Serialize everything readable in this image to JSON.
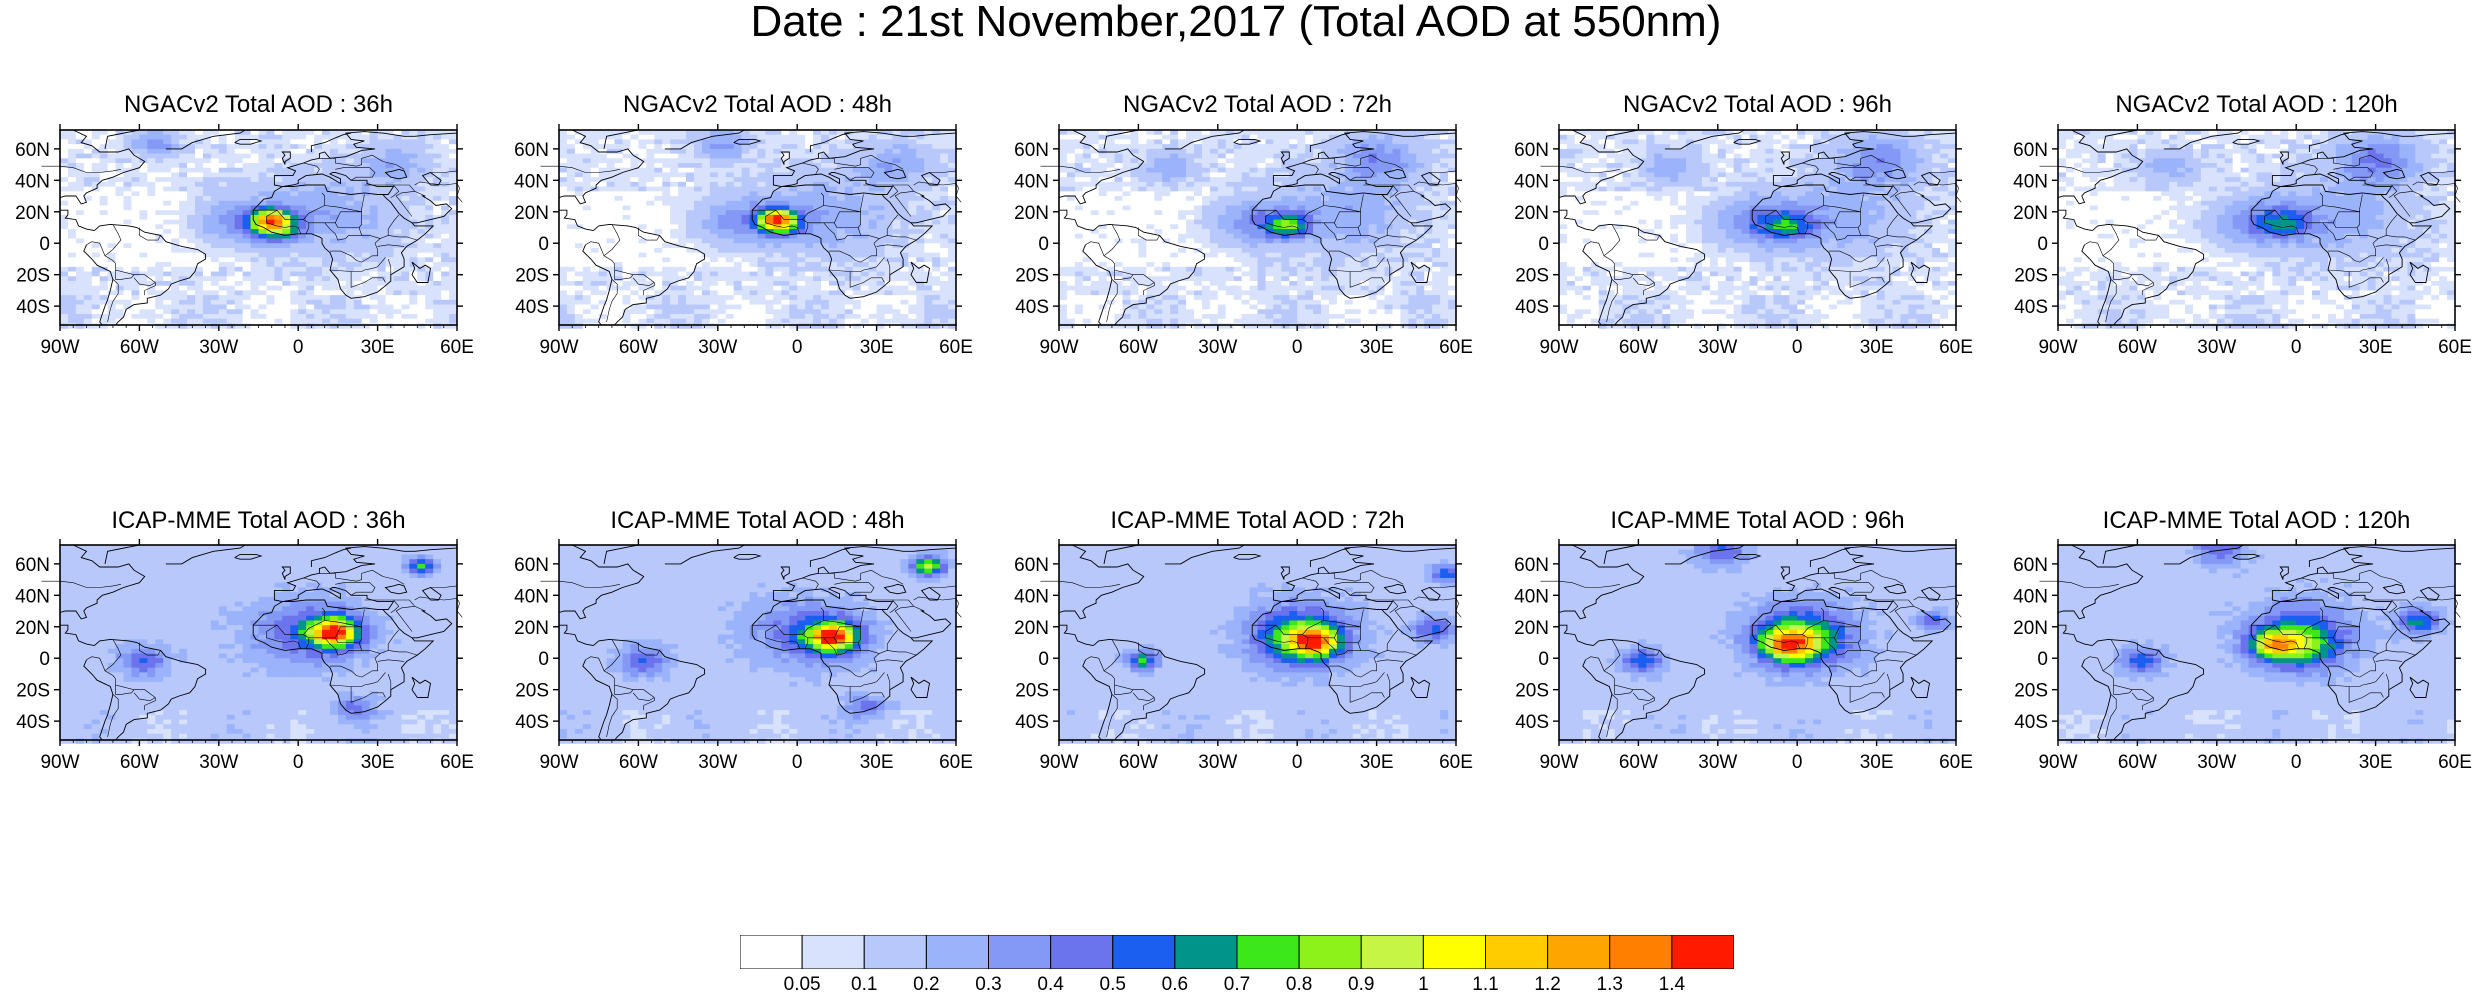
{
  "title": "Date : 21st November,2017 (Total AOD at 550nm)",
  "panels": [
    {
      "title": "NGACv2 Total AOD : 36h",
      "model": "NGACv2",
      "lead": "36h",
      "row": 0,
      "col": 0,
      "blobs": [
        [
          -10,
          13,
          9,
          0.8
        ],
        [
          -12,
          17,
          6,
          0.5
        ],
        [
          -25,
          16,
          15,
          0.3
        ],
        [
          10,
          20,
          25,
          0.2
        ],
        [
          -55,
          65,
          8,
          0.3
        ],
        [
          35,
          52,
          12,
          0.2
        ]
      ]
    },
    {
      "title": "NGACv2 Total AOD : 48h",
      "model": "NGACv2",
      "lead": "48h",
      "row": 0,
      "col": 1,
      "blobs": [
        [
          -8,
          15,
          8,
          0.8
        ],
        [
          -10,
          17,
          6,
          0.5
        ],
        [
          -25,
          16,
          15,
          0.3
        ],
        [
          10,
          20,
          25,
          0.2
        ],
        [
          -30,
          65,
          10,
          0.25
        ],
        [
          35,
          52,
          14,
          0.2
        ]
      ]
    },
    {
      "title": "NGACv2 Total AOD : 72h",
      "model": "NGACv2",
      "lead": "72h",
      "row": 0,
      "col": 2,
      "blobs": [
        [
          -5,
          13,
          8,
          0.6
        ],
        [
          -20,
          15,
          14,
          0.3
        ],
        [
          15,
          20,
          25,
          0.2
        ],
        [
          30,
          55,
          15,
          0.3
        ],
        [
          -50,
          50,
          10,
          0.2
        ]
      ]
    },
    {
      "title": "NGACv2 Total AOD : 96h",
      "model": "NGACv2",
      "lead": "96h",
      "row": 0,
      "col": 3,
      "blobs": [
        [
          -5,
          13,
          10,
          0.45
        ],
        [
          -20,
          15,
          15,
          0.3
        ],
        [
          15,
          20,
          25,
          0.2
        ],
        [
          30,
          55,
          15,
          0.3
        ],
        [
          -50,
          50,
          10,
          0.2
        ]
      ]
    },
    {
      "title": "NGACv2 Total AOD : 120h",
      "model": "NGACv2",
      "lead": "120h",
      "row": 0,
      "col": 4,
      "blobs": [
        [
          -5,
          14,
          10,
          0.4
        ],
        [
          -20,
          15,
          15,
          0.3
        ],
        [
          15,
          20,
          25,
          0.2
        ],
        [
          30,
          55,
          15,
          0.35
        ],
        [
          -50,
          50,
          10,
          0.2
        ]
      ]
    },
    {
      "title": "ICAP-MME Total AOD : 36h",
      "model": "ICAP-MME",
      "lead": "36h",
      "row": 1,
      "col": 0,
      "blobs": [
        [
          12,
          18,
          7,
          0.85
        ],
        [
          12,
          18,
          12,
          0.5
        ],
        [
          0,
          18,
          22,
          0.3
        ],
        [
          45,
          60,
          5,
          0.6
        ],
        [
          -60,
          0,
          10,
          0.35
        ],
        [
          20,
          -30,
          8,
          0.3
        ]
      ]
    },
    {
      "title": "ICAP-MME Total AOD : 48h",
      "model": "ICAP-MME",
      "lead": "48h",
      "row": 1,
      "col": 1,
      "blobs": [
        [
          12,
          15,
          7,
          0.85
        ],
        [
          12,
          15,
          12,
          0.5
        ],
        [
          0,
          18,
          22,
          0.3
        ],
        [
          48,
          60,
          6,
          0.8
        ],
        [
          -60,
          0,
          10,
          0.35
        ],
        [
          25,
          -30,
          8,
          0.3
        ]
      ]
    },
    {
      "title": "ICAP-MME Total AOD : 72h",
      "model": "ICAP-MME",
      "lead": "72h",
      "row": 1,
      "col": 2,
      "blobs": [
        [
          5,
          12,
          8,
          0.8
        ],
        [
          0,
          13,
          15,
          0.5
        ],
        [
          0,
          18,
          22,
          0.3
        ],
        [
          -60,
          0,
          6,
          0.6
        ],
        [
          50,
          20,
          8,
          0.4
        ],
        [
          55,
          55,
          6,
          0.45
        ]
      ]
    },
    {
      "title": "ICAP-MME Total AOD : 96h",
      "model": "ICAP-MME",
      "lead": "96h",
      "row": 1,
      "col": 3,
      "blobs": [
        [
          -5,
          10,
          9,
          0.7
        ],
        [
          0,
          12,
          16,
          0.5
        ],
        [
          0,
          18,
          22,
          0.3
        ],
        [
          -60,
          0,
          8,
          0.45
        ],
        [
          50,
          25,
          6,
          0.4
        ],
        [
          -30,
          70,
          10,
          0.35
        ]
      ]
    },
    {
      "title": "ICAP-MME Total AOD : 120h",
      "model": "ICAP-MME",
      "lead": "120h",
      "row": 1,
      "col": 4,
      "blobs": [
        [
          -10,
          10,
          8,
          0.7
        ],
        [
          0,
          10,
          15,
          0.5
        ],
        [
          0,
          18,
          22,
          0.3
        ],
        [
          -60,
          0,
          8,
          0.45
        ],
        [
          45,
          25,
          8,
          0.5
        ],
        [
          -30,
          70,
          10,
          0.35
        ]
      ]
    }
  ],
  "axis": {
    "lon_ticks": [
      -90,
      -60,
      -30,
      0,
      30,
      60
    ],
    "lon_labels": [
      "90W",
      "60W",
      "30W",
      "0",
      "30E",
      "60E"
    ],
    "lat_ticks": [
      60,
      40,
      20,
      0,
      -20,
      -40
    ],
    "lat_labels": [
      "60N",
      "40N",
      "20N",
      "0",
      "20S",
      "40S"
    ],
    "lon_range": [
      -90,
      60
    ],
    "lat_range": [
      -52,
      72
    ]
  },
  "colorbar": {
    "colors": [
      "#ffffff",
      "#d8e2fc",
      "#b8c8fb",
      "#9bb3fb",
      "#8498f6",
      "#6b73ed",
      "#1a5fef",
      "#00948a",
      "#3de81a",
      "#8cf21a",
      "#c6f545",
      "#ffff00",
      "#ffcc00",
      "#ffa500",
      "#ff7f00",
      "#ff1a00"
    ],
    "labels": [
      "0.05",
      "0.1",
      "0.2",
      "0.3",
      "0.4",
      "0.5",
      "0.6",
      "0.7",
      "0.8",
      "0.9",
      "1",
      "1.1",
      "1.2",
      "1.3",
      "1.4"
    ]
  },
  "icons": [
    "coastline-outline",
    "country-borders"
  ]
}
